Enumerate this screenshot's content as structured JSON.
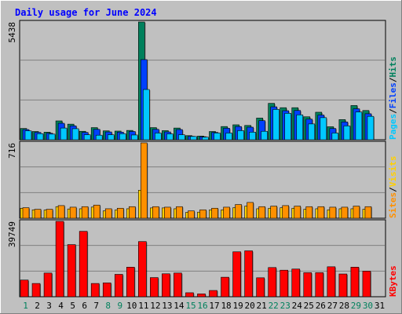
{
  "chart_data": {
    "type": "bar",
    "title": "Daily usage for June 2024",
    "days": [
      "1",
      "2",
      "3",
      "4",
      "5",
      "6",
      "7",
      "8",
      "9",
      "10",
      "11",
      "12",
      "13",
      "14",
      "15",
      "16",
      "17",
      "18",
      "19",
      "20",
      "21",
      "22",
      "23",
      "24",
      "25",
      "26",
      "27",
      "28",
      "29",
      "30",
      "31"
    ],
    "weekend_days": [
      1,
      8,
      9,
      15,
      16,
      22,
      23,
      29,
      30
    ],
    "colors": {
      "hits": "#00805c",
      "files": "#0040ff",
      "pages": "#00c8ff",
      "visits": "#ffd000",
      "sites": "#ff9000",
      "kbytes": "#ff0000",
      "weekday_label": "#000000",
      "weekend_label": "#00805c",
      "title": "#0000ff",
      "background": "#c0c0c0",
      "plot": "#c0c0c0"
    },
    "panels": [
      {
        "name": "hits-files-pages",
        "ymax_label": "5438",
        "ymax": 5438,
        "legend": [
          "Pages",
          "/",
          "Files",
          "/",
          "Hits"
        ],
        "series": [
          {
            "key": "hits",
            "values": [
              520,
              380,
              350,
              870,
              720,
              390,
              560,
              410,
              400,
              430,
              5438,
              560,
              420,
              540,
              190,
              170,
              380,
              610,
              690,
              660,
              1000,
              1680,
              1480,
              1480,
              1060,
              1270,
              600,
              930,
              1580,
              1350,
              0
            ]
          },
          {
            "key": "files",
            "values": [
              470,
              340,
              300,
              760,
              640,
              340,
              480,
              360,
              350,
              380,
              3700,
              480,
              360,
              470,
              160,
              140,
              340,
              530,
              610,
              580,
              880,
              1520,
              1340,
              1350,
              950,
              1140,
              520,
              820,
              1430,
              1200,
              0
            ]
          },
          {
            "key": "pages",
            "values": [
              410,
              280,
              260,
              540,
              510,
              230,
              210,
              230,
              280,
              220,
              2320,
              310,
              270,
              230,
              150,
              120,
              310,
              310,
              420,
              350,
              390,
              1400,
              1220,
              1150,
              730,
              1020,
              310,
              640,
              1280,
              1080,
              0
            ]
          }
        ]
      },
      {
        "name": "visits-sites",
        "ymax_label": "716",
        "ymax": 716,
        "legend": [
          "Sites",
          "/",
          "Visits"
        ],
        "series": [
          {
            "key": "visits",
            "values": [
              95,
              80,
              78,
              110,
              88,
              90,
              106,
              70,
              78,
              90,
              266,
              98,
              98,
              90,
              56,
              58,
              80,
              80,
              100,
              115,
              90,
              95,
              100,
              95,
              85,
              90,
              80,
              90,
              90,
              85,
              0
            ]
          },
          {
            "key": "sites",
            "values": [
              100,
              85,
              85,
              120,
              105,
              110,
              125,
              90,
              95,
              110,
              716,
              110,
              105,
              110,
              70,
              80,
              95,
              105,
              130,
              150,
              110,
              115,
              120,
              115,
              110,
              110,
              105,
              105,
              115,
              110,
              0
            ]
          }
        ]
      },
      {
        "name": "kbytes",
        "ymax_label": "39749",
        "ymax": 39749,
        "legend": [
          "KBytes"
        ],
        "series": [
          {
            "key": "kbytes",
            "values": [
              8800,
              7000,
              12500,
              39749,
              27500,
              34500,
              7000,
              7300,
              11800,
              15600,
              29100,
              10100,
              12100,
              12500,
              2100,
              1500,
              3300,
              10300,
              23700,
              24200,
              10000,
              15400,
              14000,
              14600,
              12700,
              12700,
              15800,
              12000,
              15600,
              13500,
              0
            ]
          }
        ]
      }
    ]
  }
}
